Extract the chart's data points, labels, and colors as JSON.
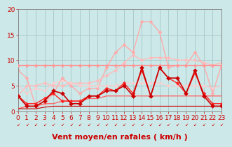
{
  "bg_color": "#cce8e8",
  "grid_color": "#aacccc",
  "xlabel": "Vent moyen/en rafales ( km/h )",
  "xlim": [
    0,
    23
  ],
  "ylim": [
    0,
    20
  ],
  "yticks": [
    0,
    5,
    10,
    15,
    20
  ],
  "xticks": [
    0,
    1,
    2,
    3,
    4,
    5,
    6,
    7,
    8,
    9,
    10,
    11,
    12,
    13,
    14,
    15,
    16,
    17,
    18,
    19,
    20,
    21,
    22,
    23
  ],
  "series": [
    {
      "comment": "light pink - highest peaking line (rafales max)",
      "x": [
        0,
        1,
        2,
        3,
        4,
        5,
        6,
        7,
        8,
        9,
        10,
        11,
        12,
        13,
        14,
        15,
        16,
        17,
        18,
        19,
        20,
        21,
        22,
        23
      ],
      "y": [
        8.0,
        6.5,
        1.0,
        1.5,
        3.5,
        6.5,
        5.0,
        3.5,
        4.5,
        4.5,
        8.5,
        11.5,
        13.0,
        11.5,
        17.5,
        17.5,
        15.5,
        8.5,
        9.0,
        9.0,
        11.5,
        9.0,
        3.5,
        9.0
      ],
      "color": "#ffaaaa",
      "lw": 1.0,
      "marker": "D",
      "ms": 2.5,
      "zorder": 2
    },
    {
      "comment": "medium pink - nearly flat around 9 (horizontal line)",
      "x": [
        0,
        1,
        2,
        3,
        4,
        5,
        6,
        7,
        8,
        9,
        10,
        11,
        12,
        13,
        14,
        15,
        16,
        17,
        18,
        19,
        20,
        21,
        22,
        23
      ],
      "y": [
        9.0,
        9.0,
        9.0,
        9.0,
        9.0,
        9.0,
        9.0,
        9.0,
        9.0,
        9.0,
        9.0,
        9.0,
        9.0,
        9.0,
        9.0,
        9.0,
        9.0,
        9.0,
        9.0,
        9.0,
        9.0,
        9.0,
        9.0,
        9.0
      ],
      "color": "#ff9999",
      "lw": 1.5,
      "marker": "D",
      "ms": 2.5,
      "zorder": 3
    },
    {
      "comment": "salmon - second highest, slightly below, rising then flat ~10",
      "x": [
        0,
        1,
        2,
        3,
        4,
        5,
        6,
        7,
        8,
        9,
        10,
        11,
        12,
        13,
        14,
        15,
        16,
        17,
        18,
        19,
        20,
        21,
        22,
        23
      ],
      "y": [
        3.0,
        5.0,
        5.0,
        5.5,
        5.0,
        5.0,
        5.5,
        5.5,
        5.5,
        6.0,
        7.0,
        8.0,
        9.5,
        11.0,
        10.0,
        10.5,
        10.5,
        10.5,
        10.0,
        10.0,
        10.0,
        9.5,
        9.0,
        9.5
      ],
      "color": "#ffbbbb",
      "lw": 1.0,
      "marker": "D",
      "ms": 2.5,
      "zorder": 2
    },
    {
      "comment": "medium pink flat ~5",
      "x": [
        0,
        1,
        2,
        3,
        4,
        5,
        6,
        7,
        8,
        9,
        10,
        11,
        12,
        13,
        14,
        15,
        16,
        17,
        18,
        19,
        20,
        21,
        22,
        23
      ],
      "y": [
        5.0,
        3.5,
        4.5,
        4.0,
        5.5,
        6.0,
        5.5,
        5.0,
        5.0,
        5.0,
        5.0,
        5.0,
        5.5,
        5.5,
        5.5,
        5.5,
        5.5,
        5.0,
        5.0,
        5.0,
        5.0,
        5.0,
        4.5,
        5.0
      ],
      "color": "#ffcccc",
      "lw": 0.9,
      "marker": "D",
      "ms": 2.0,
      "zorder": 2
    },
    {
      "comment": "dark red spiky - vent moyen with peaks",
      "x": [
        0,
        1,
        2,
        3,
        4,
        5,
        6,
        7,
        8,
        9,
        10,
        11,
        12,
        13,
        14,
        15,
        16,
        17,
        18,
        19,
        20,
        21,
        22,
        23
      ],
      "y": [
        3.0,
        1.0,
        1.0,
        2.0,
        4.0,
        3.5,
        1.5,
        1.5,
        3.0,
        3.0,
        4.0,
        4.0,
        5.0,
        3.0,
        8.5,
        3.0,
        8.5,
        6.5,
        6.5,
        3.5,
        8.0,
        3.0,
        1.0,
        1.0
      ],
      "color": "#cc0000",
      "lw": 1.2,
      "marker": "D",
      "ms": 3.0,
      "zorder": 5
    },
    {
      "comment": "red - second spiky dark red line",
      "x": [
        0,
        1,
        2,
        3,
        4,
        5,
        6,
        7,
        8,
        9,
        10,
        11,
        12,
        13,
        14,
        15,
        16,
        17,
        18,
        19,
        20,
        21,
        22,
        23
      ],
      "y": [
        3.0,
        1.5,
        1.5,
        2.5,
        3.5,
        2.0,
        2.0,
        2.0,
        3.0,
        3.0,
        4.5,
        4.0,
        5.5,
        3.5,
        8.0,
        3.0,
        8.5,
        6.5,
        5.5,
        3.5,
        7.5,
        3.5,
        1.5,
        1.5
      ],
      "color": "#ff2222",
      "lw": 1.0,
      "marker": "D",
      "ms": 2.5,
      "zorder": 4
    },
    {
      "comment": "medium red - slightly raised from bottom, gentle slope",
      "x": [
        0,
        1,
        2,
        3,
        4,
        5,
        6,
        7,
        8,
        9,
        10,
        11,
        12,
        13,
        14,
        15,
        16,
        17,
        18,
        19,
        20,
        21,
        22,
        23
      ],
      "y": [
        0.5,
        1.0,
        1.0,
        1.5,
        1.5,
        2.0,
        2.0,
        2.0,
        2.5,
        2.5,
        3.0,
        3.0,
        3.0,
        3.0,
        3.0,
        3.0,
        3.0,
        3.0,
        3.0,
        3.0,
        3.0,
        3.0,
        3.0,
        3.0
      ],
      "color": "#ff6666",
      "lw": 1.0,
      "marker": null,
      "ms": 0,
      "zorder": 3
    },
    {
      "comment": "dark red near bottom - nearly flat at 1",
      "x": [
        0,
        1,
        2,
        3,
        4,
        5,
        6,
        7,
        8,
        9,
        10,
        11,
        12,
        13,
        14,
        15,
        16,
        17,
        18,
        19,
        20,
        21,
        22,
        23
      ],
      "y": [
        0.5,
        0.5,
        0.5,
        0.8,
        1.0,
        1.0,
        1.0,
        1.0,
        1.0,
        1.0,
        1.0,
        1.0,
        1.0,
        1.0,
        1.0,
        1.0,
        1.0,
        1.0,
        1.0,
        1.0,
        1.0,
        1.0,
        1.0,
        1.0
      ],
      "color": "#cc0000",
      "lw": 0.8,
      "marker": null,
      "ms": 0,
      "zorder": 3
    }
  ],
  "xlabel_color": "#cc0000",
  "xlabel_fontsize": 8,
  "tick_color": "#cc0000",
  "tick_fontsize": 6.5
}
